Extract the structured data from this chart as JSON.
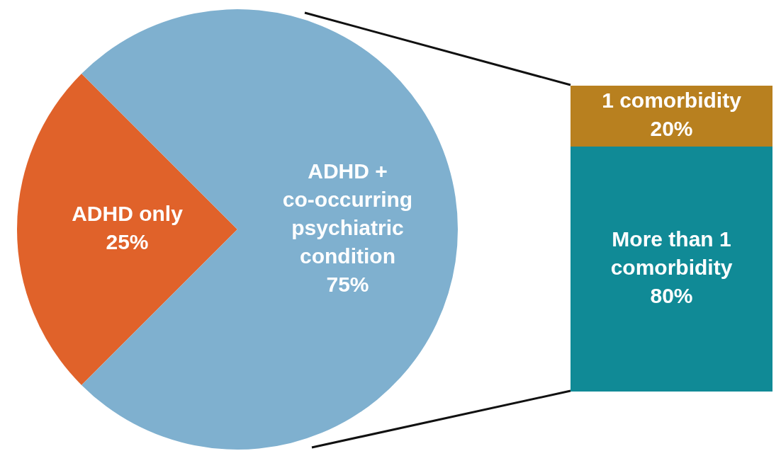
{
  "chart_data": [
    {
      "type": "pie",
      "categories": [
        "ADHD only",
        "ADHD + co-occurring psychiatric condition"
      ],
      "values": [
        25,
        75
      ],
      "colors": [
        "#e0622a",
        "#7fb0cf"
      ],
      "value_labels": [
        "25%",
        "75%"
      ],
      "legend": false
    },
    {
      "type": "bar",
      "stacked": true,
      "categories": [
        null
      ],
      "ylim": [
        0,
        100
      ],
      "tick_labels": false,
      "legend": false,
      "series": [
        {
          "name": "More than 1 comorbidity",
          "color": "#108a96",
          "values": [
            80
          ],
          "value_labels": [
            "80%"
          ]
        },
        {
          "name": "1 comorbidity",
          "color": "#b8801f",
          "values": [
            20
          ],
          "value_labels": [
            "20%"
          ]
        }
      ]
    }
  ]
}
